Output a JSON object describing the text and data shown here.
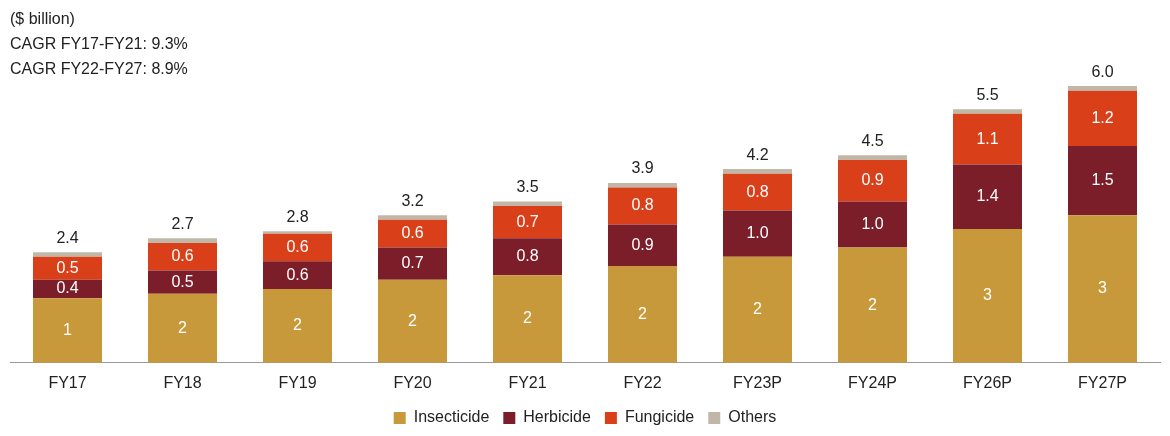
{
  "chart_data": {
    "type": "bar",
    "stacked": true,
    "legend": "bottom",
    "annotations": [
      "($ billion)",
      "CAGR FY17-FY21: 9.3%",
      "CAGR FY22-FY27: 8.9%"
    ],
    "categories": [
      "FY17",
      "FY18",
      "FY19",
      "FY20",
      "FY21",
      "FY22",
      "FY23P",
      "FY24P",
      "FY26P",
      "FY27P"
    ],
    "series": [
      {
        "name": "Insecticide",
        "color": "#c8993a",
        "values": [
          1.4,
          1.5,
          1.6,
          1.8,
          1.9,
          2.1,
          2.3,
          2.5,
          2.9,
          3.2
        ],
        "value_labels": [
          "1",
          "2",
          "2",
          "2",
          "2",
          "2",
          "2",
          "2",
          "3",
          "3"
        ]
      },
      {
        "name": "Herbicide",
        "color": "#7b1e2a",
        "values": [
          0.4,
          0.5,
          0.6,
          0.7,
          0.8,
          0.9,
          1.0,
          1.0,
          1.4,
          1.5
        ],
        "value_labels": [
          "0.4",
          "0.5",
          "0.6",
          "0.7",
          "0.8",
          "0.9",
          "1.0",
          "1.0",
          "1.4",
          "1.5"
        ]
      },
      {
        "name": "Fungicide",
        "color": "#d9401a",
        "values": [
          0.5,
          0.6,
          0.6,
          0.6,
          0.7,
          0.8,
          0.8,
          0.9,
          1.1,
          1.2
        ],
        "value_labels": [
          "0.5",
          "0.6",
          "0.6",
          "0.6",
          "0.7",
          "0.8",
          "0.8",
          "0.9",
          "1.1",
          "1.2"
        ]
      },
      {
        "name": "Others",
        "color": "#c0b7a8",
        "values": [
          0.1,
          0.1,
          0.05,
          0.1,
          0.1,
          0.1,
          0.1,
          0.1,
          0.1,
          0.1
        ]
      }
    ],
    "totals": [
      "2.4",
      "2.7",
      "2.8",
      "3.2",
      "3.5",
      "3.9",
      "4.2",
      "4.5",
      "5.5",
      "6.0"
    ]
  }
}
